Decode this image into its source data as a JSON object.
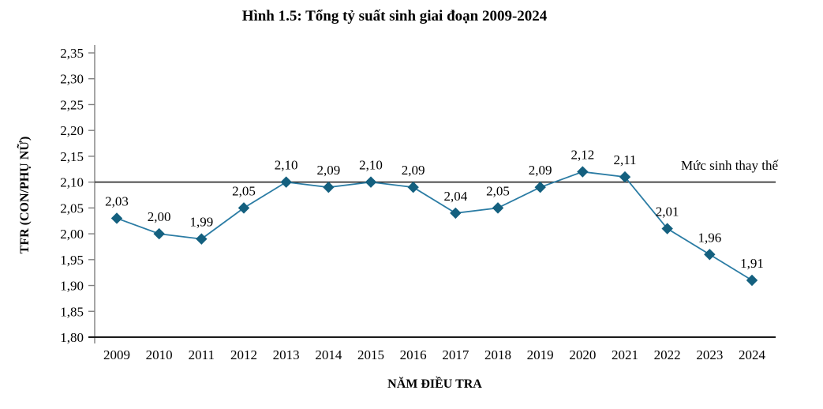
{
  "title": "Hình 1.5: Tổng tỷ suất sinh giai đoạn 2009-2024",
  "chart_data": {
    "type": "line",
    "title": "Hình 1.5: Tổng tỷ suất sinh giai đoạn 2009-2024",
    "categories": [
      "2009",
      "2010",
      "2011",
      "2012",
      "2013",
      "2014",
      "2015",
      "2016",
      "2017",
      "2018",
      "2019",
      "2020",
      "2021",
      "2022",
      "2023",
      "2024"
    ],
    "series": [
      {
        "name": "TFR",
        "values": [
          2.03,
          2.0,
          1.99,
          2.05,
          2.1,
          2.09,
          2.1,
          2.09,
          2.04,
          2.05,
          2.09,
          2.12,
          2.11,
          2.01,
          1.96,
          1.91
        ],
        "point_labels": [
          "2,03",
          "2,00",
          "1,99",
          "2,05",
          "2,10",
          "2,09",
          "2,10",
          "2,09",
          "2,04",
          "2,05",
          "2,09",
          "2,12",
          "2,11",
          "2,01",
          "1,96",
          "1,91"
        ]
      }
    ],
    "xlabel": "NĂM ĐIỀU TRA",
    "ylabel": "TFR (CON/PHỤ NỮ)",
    "ylim": [
      1.8,
      2.35
    ],
    "ytick_step": 0.05,
    "ytick_values": [
      2.35,
      2.3,
      2.25,
      2.2,
      2.15,
      2.1,
      2.05,
      2.0,
      1.95,
      1.9,
      1.85,
      1.8
    ],
    "ytick_labels": [
      "2,35",
      "2,30",
      "2,25",
      "2,20",
      "2,15",
      "2,10",
      "2,05",
      "2,00",
      "1,95",
      "1,90",
      "1,85",
      "1,80"
    ],
    "reference_line": {
      "value": 2.1,
      "label": "Mức sinh thay thế"
    },
    "grid": false,
    "legend_position": "none",
    "colors": {
      "line": "#2B7CA4",
      "marker": "#14607F",
      "y_axis": "#808080",
      "x_axis": "#1a1a1a",
      "reference_line": "#333333",
      "text": "#000000"
    }
  }
}
